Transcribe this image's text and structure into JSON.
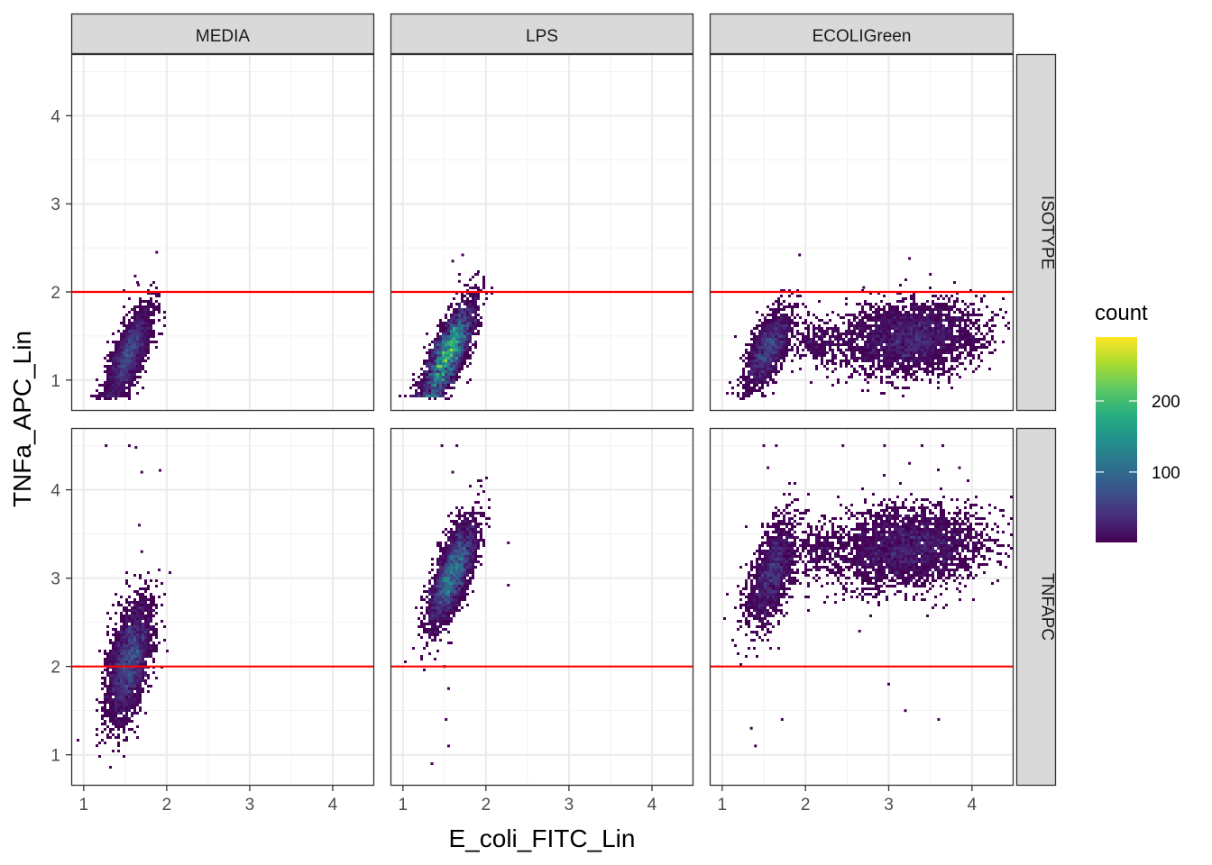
{
  "chart_data": {
    "type": "heatmap",
    "subtype": "hexbin density, faceted grid",
    "xlabel": "E_coli_FITC_Lin",
    "ylabel": "TNFa_APC_Lin",
    "xlim": [
      0.85,
      4.5
    ],
    "ylim": [
      0.65,
      4.7
    ],
    "xticks": [
      1,
      2,
      3,
      4
    ],
    "yticks": [
      1,
      2,
      3,
      4
    ],
    "grid": true,
    "col_facets": [
      "MEDIA",
      "LPS",
      "ECOLIGreen"
    ],
    "row_facets": [
      "ISOTYPE",
      "TNFAPC"
    ],
    "threshold_line": {
      "y": 2,
      "color": "#ff0000"
    },
    "legend": {
      "title": "count",
      "placement": "right",
      "breaks": [
        100,
        200
      ],
      "range": [
        1,
        290
      ],
      "colors": [
        "#440154",
        "#472D7B",
        "#3B528B",
        "#2C728E",
        "#21918C",
        "#28AE80",
        "#5EC962",
        "#ADDC30",
        "#FDE725"
      ]
    },
    "panels": [
      {
        "col": "MEDIA",
        "row": "ISOTYPE",
        "clusters": [
          {
            "x": 1.55,
            "y": 1.3,
            "sx": 0.13,
            "sy": 0.25,
            "rho": 0.72,
            "n": 2600,
            "peak": 95
          }
        ],
        "outliers": [
          [
            1.88,
            2.45
          ],
          [
            1.62,
            2.18
          ],
          [
            1.66,
            2.08
          ]
        ]
      },
      {
        "col": "LPS",
        "row": "ISOTYPE",
        "clusters": [
          {
            "x": 1.55,
            "y": 1.3,
            "sx": 0.15,
            "sy": 0.27,
            "rho": 0.75,
            "n": 3200,
            "peak": 250
          }
        ],
        "outliers": [
          [
            1.72,
            2.42
          ],
          [
            1.6,
            2.35
          ],
          [
            1.9,
            2.2
          ],
          [
            1.68,
            2.12
          ]
        ]
      },
      {
        "col": "ECOLIGreen",
        "row": "ISOTYPE",
        "clusters": [
          {
            "x": 1.55,
            "y": 1.35,
            "sx": 0.14,
            "sy": 0.22,
            "rho": 0.65,
            "n": 1600,
            "peak": 90
          },
          {
            "x": 3.25,
            "y": 1.48,
            "sx": 0.42,
            "sy": 0.2,
            "rho": 0.15,
            "n": 3000,
            "peak": 55
          },
          {
            "x": 2.15,
            "y": 1.45,
            "sx": 0.15,
            "sy": 0.12,
            "rho": 0.0,
            "n": 260,
            "peak": 20
          }
        ],
        "outliers": [
          [
            1.93,
            2.42
          ],
          [
            3.25,
            2.38
          ],
          [
            3.5,
            2.2
          ],
          [
            2.7,
            2.05
          ]
        ]
      },
      {
        "col": "MEDIA",
        "row": "TNFAPC",
        "clusters": [
          {
            "x": 1.55,
            "y": 2.05,
            "sx": 0.13,
            "sy": 0.33,
            "rho": 0.5,
            "n": 3200,
            "peak": 115
          }
        ],
        "outliers": [
          [
            1.27,
            4.5
          ],
          [
            1.55,
            4.5
          ],
          [
            1.63,
            4.48
          ],
          [
            1.92,
            4.22
          ],
          [
            1.7,
            4.2
          ],
          [
            1.67,
            3.6
          ],
          [
            1.7,
            3.3
          ]
        ]
      },
      {
        "col": "LPS",
        "row": "TNFAPC",
        "clusters": [
          {
            "x": 1.6,
            "y": 3.05,
            "sx": 0.14,
            "sy": 0.3,
            "rho": 0.72,
            "n": 3200,
            "peak": 150
          }
        ],
        "outliers": [
          [
            1.47,
            4.5
          ],
          [
            1.65,
            4.5
          ],
          [
            1.6,
            4.2
          ],
          [
            1.5,
            2.0
          ],
          [
            1.55,
            1.75
          ],
          [
            1.52,
            1.4
          ],
          [
            1.55,
            1.1
          ],
          [
            1.35,
            0.9
          ],
          [
            2.27,
            3.4
          ],
          [
            2.27,
            2.92
          ]
        ]
      },
      {
        "col": "ECOLIGreen",
        "row": "TNFAPC",
        "clusters": [
          {
            "x": 1.6,
            "y": 3.05,
            "sx": 0.15,
            "sy": 0.3,
            "rho": 0.6,
            "n": 1600,
            "peak": 80
          },
          {
            "x": 3.25,
            "y": 3.35,
            "sx": 0.45,
            "sy": 0.23,
            "rho": 0.15,
            "n": 3000,
            "peak": 60
          },
          {
            "x": 2.15,
            "y": 3.3,
            "sx": 0.15,
            "sy": 0.15,
            "rho": 0.0,
            "n": 250,
            "peak": 20
          }
        ],
        "outliers": [
          [
            1.5,
            4.5
          ],
          [
            1.65,
            4.5
          ],
          [
            2.45,
            4.5
          ],
          [
            2.95,
            4.5
          ],
          [
            3.4,
            4.5
          ],
          [
            3.65,
            4.5
          ],
          [
            3.85,
            4.25
          ],
          [
            3.25,
            4.3
          ],
          [
            1.55,
            4.25
          ],
          [
            1.35,
            1.3
          ],
          [
            1.4,
            1.1
          ],
          [
            1.72,
            1.4
          ],
          [
            3.2,
            1.5
          ],
          [
            3.6,
            1.4
          ],
          [
            2.65,
            2.4
          ],
          [
            3.0,
            1.8
          ]
        ]
      }
    ]
  }
}
